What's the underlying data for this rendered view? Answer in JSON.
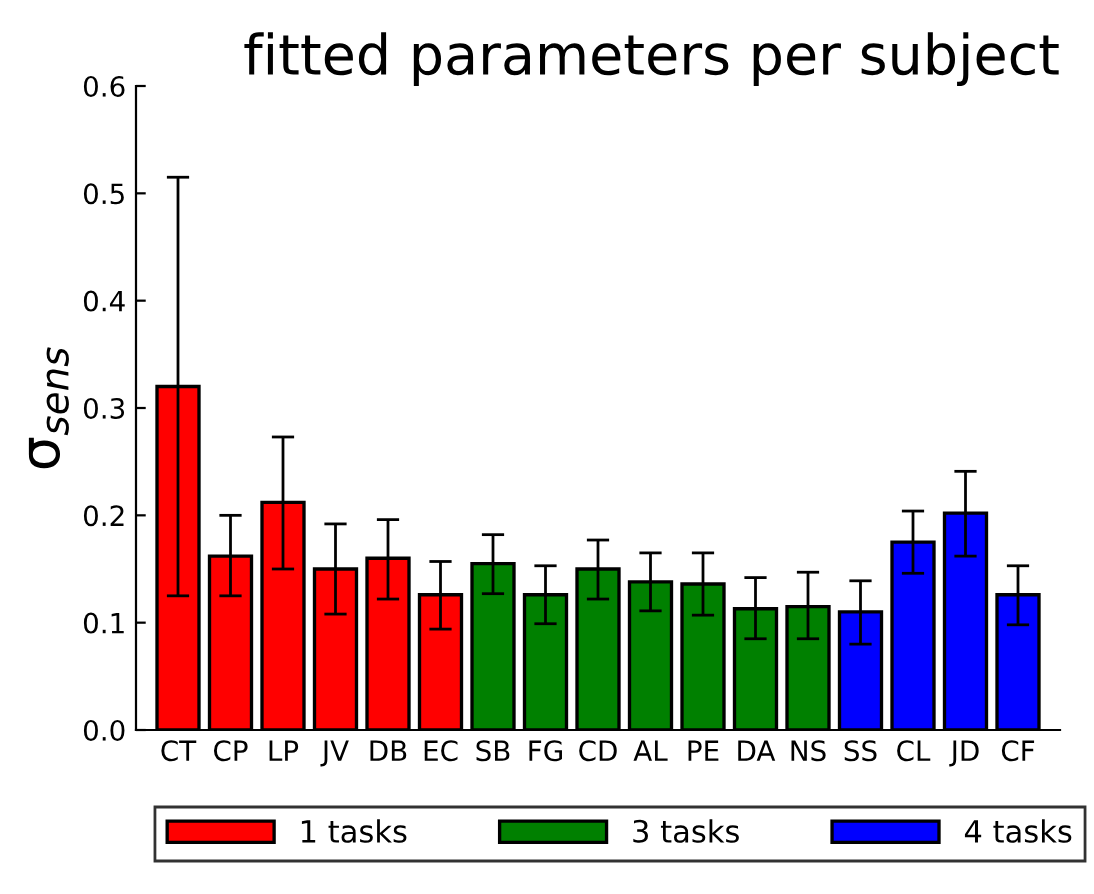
{
  "chart_data": {
    "type": "bar",
    "title": "fitted parameters per subject",
    "ylabel": "σ$_{sens}$",
    "categories": [
      "CT",
      "CP",
      "LP",
      "JV",
      "DB",
      "EC",
      "SB",
      "FG",
      "CD",
      "AL",
      "PE",
      "DA",
      "NS",
      "SS",
      "CL",
      "JD",
      "CF"
    ],
    "series": [
      {
        "name": "1 tasks",
        "color": "#ff0000",
        "values": [
          0.32,
          0.162,
          0.212,
          0.15,
          0.16,
          0.126,
          null,
          null,
          null,
          null,
          null,
          null,
          null,
          null,
          null,
          null,
          null
        ],
        "errors": [
          [
            0.125,
            0.515
          ],
          [
            0.125,
            0.2
          ],
          [
            0.15,
            0.273
          ],
          [
            0.108,
            0.192
          ],
          [
            0.122,
            0.196
          ],
          [
            0.094,
            0.157
          ],
          null,
          null,
          null,
          null,
          null,
          null,
          null,
          null,
          null,
          null,
          null
        ]
      },
      {
        "name": "3 tasks",
        "color": "#008000",
        "values": [
          null,
          null,
          null,
          null,
          null,
          null,
          0.155,
          0.126,
          0.15,
          0.138,
          0.136,
          0.113,
          0.115,
          null,
          null,
          null,
          null
        ],
        "errors": [
          null,
          null,
          null,
          null,
          null,
          null,
          [
            0.127,
            0.182
          ],
          [
            0.099,
            0.153
          ],
          [
            0.122,
            0.177
          ],
          [
            0.111,
            0.165
          ],
          [
            0.107,
            0.165
          ],
          [
            0.085,
            0.142
          ],
          [
            0.085,
            0.147
          ],
          null,
          null,
          null,
          null
        ]
      },
      {
        "name": "4 tasks",
        "color": "#0000ff",
        "values": [
          null,
          null,
          null,
          null,
          null,
          null,
          null,
          null,
          null,
          null,
          null,
          null,
          null,
          0.11,
          0.175,
          0.202,
          0.126
        ],
        "errors": [
          null,
          null,
          null,
          null,
          null,
          null,
          null,
          null,
          null,
          null,
          null,
          null,
          null,
          [
            0.08,
            0.139
          ],
          [
            0.146,
            0.204
          ],
          [
            0.162,
            0.241
          ],
          [
            0.098,
            0.153
          ]
        ]
      }
    ],
    "ylim": [
      0.0,
      0.6
    ],
    "yticks": [
      {
        "value": 0.0,
        "label": "0.0"
      },
      {
        "value": 0.1,
        "label": "0.1"
      },
      {
        "value": 0.2,
        "label": "0.2"
      },
      {
        "value": 0.3,
        "label": "0.3"
      },
      {
        "value": 0.4,
        "label": "0.4"
      },
      {
        "value": 0.5,
        "label": "0.5"
      },
      {
        "value": 0.6,
        "label": "0.6"
      }
    ],
    "legend": "bottom",
    "grid": false
  }
}
